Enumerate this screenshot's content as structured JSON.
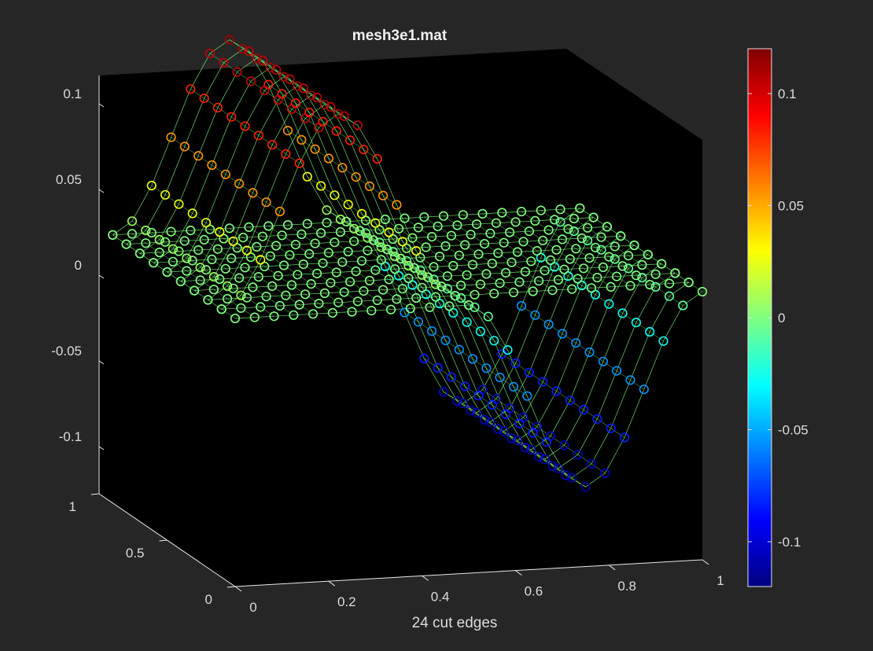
{
  "chart_data": {
    "type": "scatter",
    "title": "mesh3e1.mat",
    "xlabel": "24 cut edges",
    "ylabel": "",
    "zlabel": "",
    "xlim": [
      0,
      1
    ],
    "ylim": [
      0,
      1
    ],
    "zlim": [
      -0.12,
      0.12
    ],
    "x_ticks": [
      "0",
      "0.2",
      "0.4",
      "0.6",
      "0.8",
      "1"
    ],
    "y_ticks": [
      "0",
      "0.5",
      "1"
    ],
    "z_ticks": [
      "-0.1",
      "-0.05",
      "0",
      "0.05",
      "0.1"
    ],
    "colorbar_ticks": [
      "-0.1",
      "-0.05",
      "0",
      "0.05",
      "0.1"
    ],
    "colorbar_range": [
      -0.12,
      0.12
    ],
    "colormap": "jet",
    "background_color": "#000000",
    "figure_color": "#262626",
    "marker": "open circle",
    "grid": false,
    "nodes_per_row": 25,
    "series": [
      {
        "description": "lower surface: cyan lattice at z=0 over x=0..0.5, dips to a blue trough (z≈-0.11) over x=0.5..1",
        "y": [
          0.0,
          0.1,
          0.2,
          0.3,
          0.4,
          0.5,
          0.6,
          0.7,
          0.8,
          0.9
        ],
        "bump_center_x": 0.75,
        "amplitude": -0.11
      },
      {
        "description": "upper surface: yellow lattice at z=0 over x=0.5..1, rises to a red ridge (z≈+0.11) over x=0..0.5",
        "y": [
          0.1,
          0.2,
          0.3,
          0.4,
          0.5,
          0.6,
          0.7,
          0.8,
          0.9
        ],
        "bump_center_x": 0.25,
        "amplitude": 0.11
      }
    ]
  }
}
